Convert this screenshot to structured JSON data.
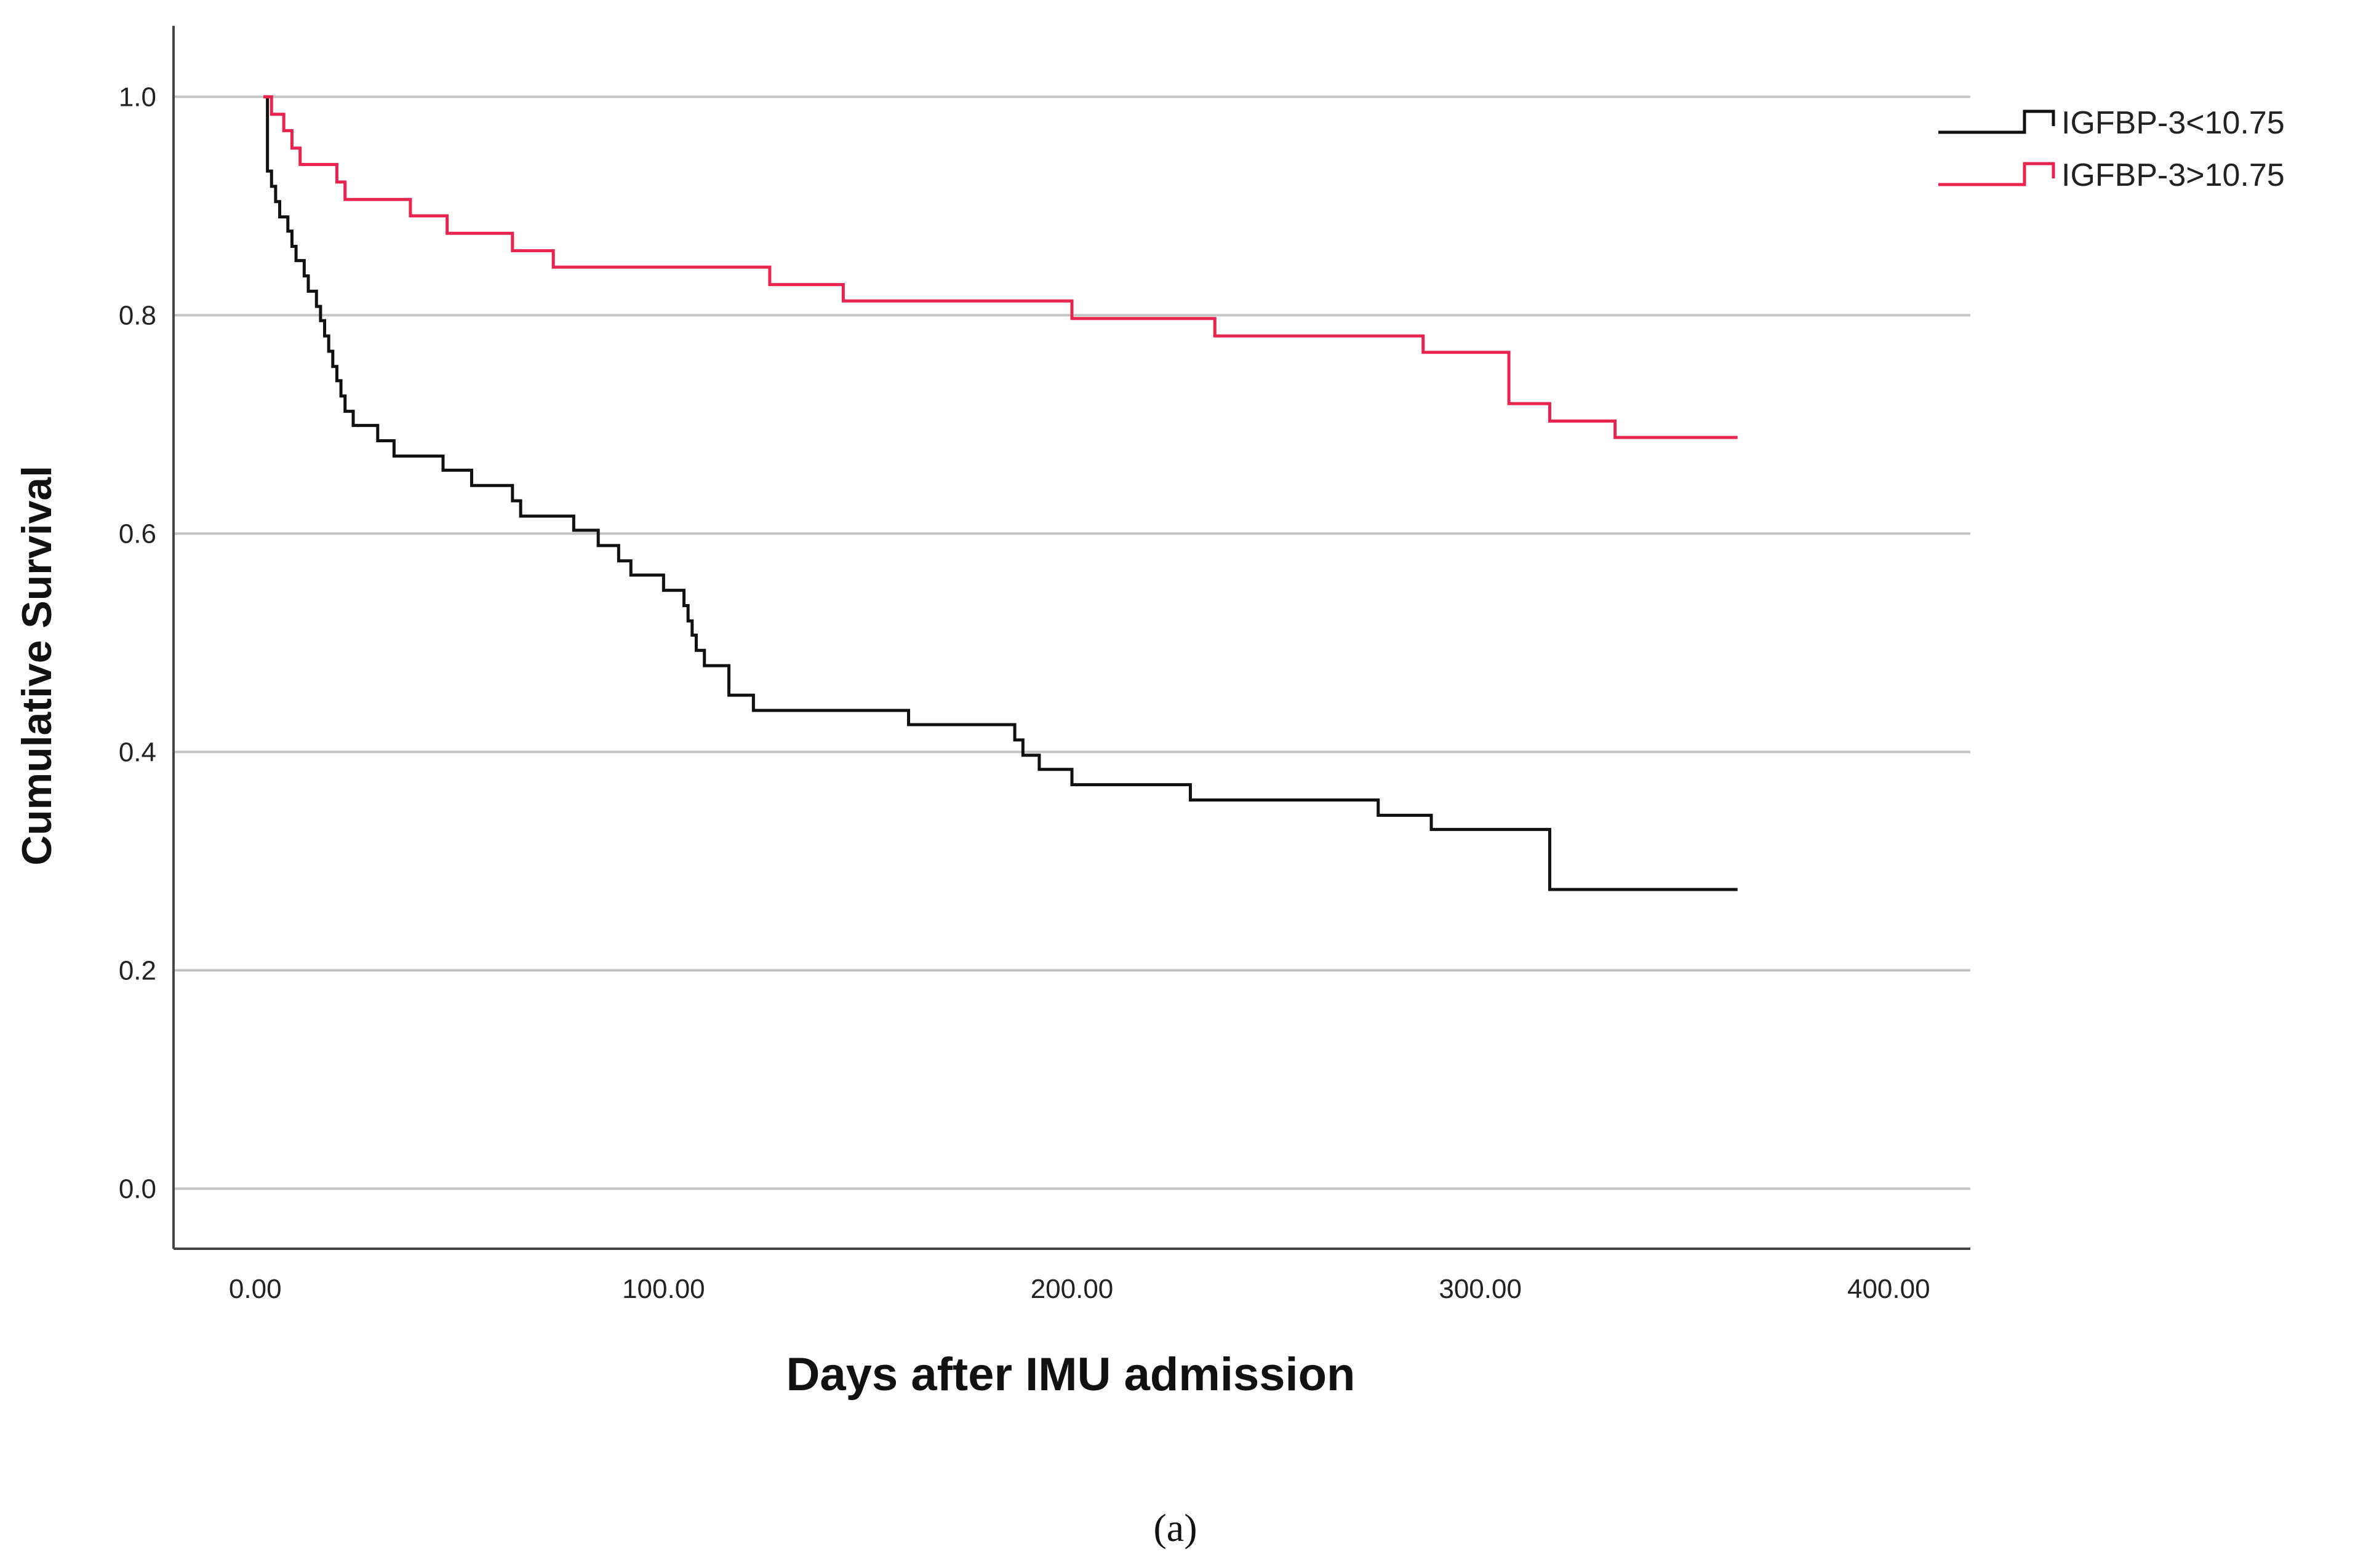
{
  "chart_data": {
    "type": "line",
    "subtype": "kaplan-meier step",
    "title": "",
    "xlabel": "Days after IMU admission",
    "ylabel": "Cumulative Survival",
    "caption": "(a)",
    "xlim": [
      -20,
      420
    ],
    "ylim": [
      -0.055,
      1.065
    ],
    "x_ticks": [
      0,
      100,
      200,
      300,
      400
    ],
    "x_tick_labels": [
      "0.00",
      "100.00",
      "200.00",
      "300.00",
      "400.00"
    ],
    "y_ticks": [
      0.0,
      0.2,
      0.4,
      0.6,
      0.8,
      1.0
    ],
    "y_tick_labels": [
      "0.0",
      "0.2",
      "0.4",
      "0.6",
      "0.8",
      "1.0"
    ],
    "grid": "horizontal",
    "legend_position": "top-right",
    "series": [
      {
        "name": "IGFBP-3<10.75",
        "color": "#111111",
        "x": [
          2,
          3,
          4,
          5,
          6,
          8,
          9,
          10,
          12,
          13,
          15,
          16,
          17,
          18,
          19,
          20,
          21,
          22,
          24,
          30,
          34,
          46,
          53,
          63,
          65,
          78,
          84,
          89,
          92,
          100,
          105,
          106,
          107,
          108,
          110,
          116,
          122,
          160,
          186,
          188,
          192,
          200,
          229,
          275,
          288,
          317,
          363
        ],
        "y": [
          1.0,
          0.932,
          0.918,
          0.904,
          0.89,
          0.877,
          0.863,
          0.85,
          0.836,
          0.822,
          0.808,
          0.795,
          0.781,
          0.767,
          0.753,
          0.74,
          0.726,
          0.712,
          0.699,
          0.685,
          0.671,
          0.658,
          0.644,
          0.63,
          0.616,
          0.603,
          0.589,
          0.575,
          0.562,
          0.548,
          0.534,
          0.52,
          0.507,
          0.493,
          0.479,
          0.452,
          0.438,
          0.425,
          0.411,
          0.397,
          0.384,
          0.37,
          0.356,
          0.342,
          0.329,
          0.274,
          0.274
        ]
      },
      {
        "name": "IGFBP-3>10.75",
        "color": "#e8244f",
        "x": [
          2,
          4,
          7,
          9,
          11,
          20,
          22,
          38,
          47,
          63,
          73,
          126,
          144,
          200,
          235,
          286,
          307,
          317,
          333,
          363
        ],
        "y": [
          1.0,
          0.984,
          0.969,
          0.953,
          0.938,
          0.922,
          0.906,
          0.891,
          0.875,
          0.859,
          0.844,
          0.828,
          0.813,
          0.797,
          0.781,
          0.766,
          0.719,
          0.703,
          0.688,
          0.688
        ]
      }
    ]
  }
}
